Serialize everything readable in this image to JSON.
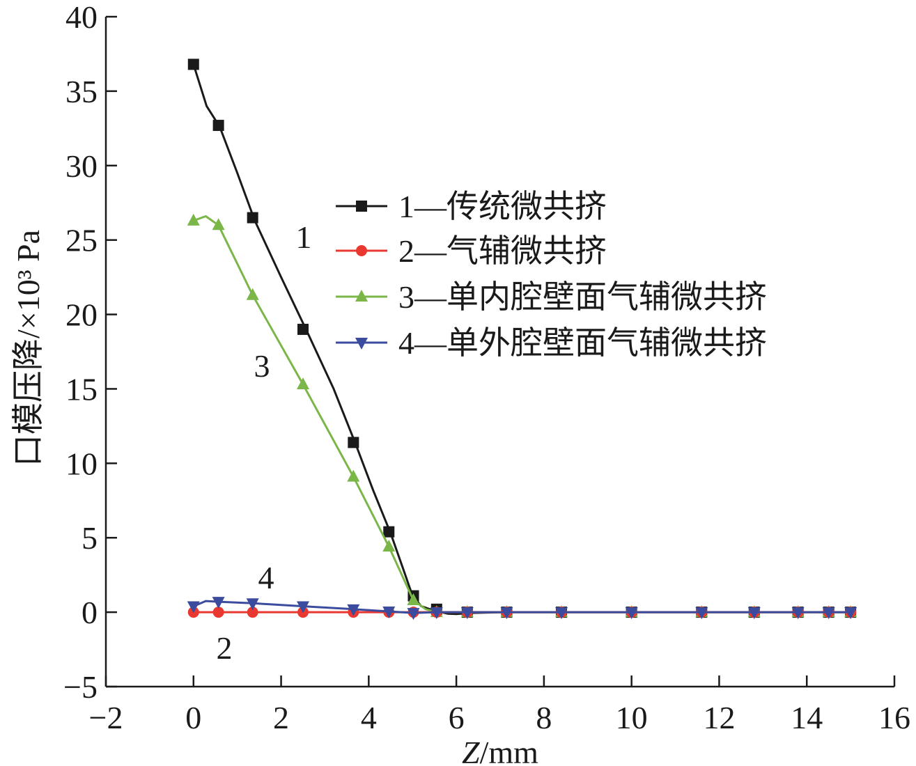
{
  "chart_data": {
    "type": "line",
    "xlabel": "Z/mm",
    "ylabel": "口模压降/×10³ Pa",
    "xlim": [
      -2,
      16
    ],
    "ylim": [
      -5,
      40
    ],
    "x_ticks": [
      "−2",
      "0",
      "2",
      "4",
      "6",
      "8",
      "10",
      "12",
      "14",
      "16"
    ],
    "y_ticks": [
      "−5",
      "0",
      "5",
      "10",
      "15",
      "20",
      "25",
      "30",
      "35",
      "40"
    ],
    "grid": false,
    "legend_position": "right",
    "series": [
      {
        "name": "1—传统微共挤",
        "curve_label": "1",
        "color": "#1a1a1a",
        "marker": "square",
        "line": [
          [
            0,
            36.8
          ],
          [
            0.3,
            34
          ],
          [
            0.6,
            32.6
          ],
          [
            1.0,
            29.5
          ],
          [
            1.4,
            26.3
          ],
          [
            2.0,
            22.5
          ],
          [
            2.6,
            18.8
          ],
          [
            3.2,
            15
          ],
          [
            3.7,
            11.3
          ],
          [
            4.1,
            8.2
          ],
          [
            4.5,
            5.3
          ],
          [
            4.8,
            2.8
          ],
          [
            5.0,
            1.1
          ],
          [
            5.2,
            0.4
          ],
          [
            5.5,
            0.1
          ],
          [
            5.8,
            -0.1
          ],
          [
            6.0,
            -0.12
          ],
          [
            6.3,
            -0.05
          ],
          [
            7.1,
            0
          ],
          [
            15,
            0
          ]
        ],
        "markers": [
          [
            0,
            36.8
          ],
          [
            0.57,
            32.7
          ],
          [
            1.35,
            26.5
          ],
          [
            2.5,
            19
          ],
          [
            3.65,
            11.4
          ],
          [
            4.46,
            5.4
          ],
          [
            5.02,
            1.1
          ],
          [
            5.55,
            0.2
          ],
          [
            6.25,
            0
          ],
          [
            7.15,
            0
          ],
          [
            8.4,
            0
          ],
          [
            10,
            0
          ],
          [
            11.6,
            0
          ],
          [
            12.8,
            0
          ],
          [
            13.8,
            0
          ],
          [
            14.5,
            0
          ],
          [
            15,
            0
          ]
        ]
      },
      {
        "name": "2—气辅微共挤",
        "curve_label": "2",
        "color": "#e8382f",
        "marker": "circle",
        "line": [
          [
            0,
            0
          ],
          [
            15,
            0
          ]
        ],
        "markers": [
          [
            0,
            0
          ],
          [
            0.57,
            0
          ],
          [
            1.35,
            0
          ],
          [
            2.5,
            0
          ],
          [
            3.65,
            0
          ],
          [
            4.46,
            0
          ],
          [
            5.02,
            0
          ],
          [
            5.55,
            0
          ],
          [
            6.25,
            0
          ],
          [
            7.15,
            0
          ],
          [
            8.4,
            0
          ],
          [
            10,
            0
          ],
          [
            11.6,
            0
          ],
          [
            12.8,
            0
          ],
          [
            13.8,
            0
          ],
          [
            14.5,
            0
          ],
          [
            15,
            0
          ]
        ]
      },
      {
        "name": "3—单内腔壁面气辅微共挤",
        "curve_label": "3",
        "color": "#7ab648",
        "marker": "triangle-up",
        "line": [
          [
            0,
            26.3
          ],
          [
            0.28,
            26.6
          ],
          [
            0.57,
            26
          ],
          [
            1.35,
            21.3
          ],
          [
            2.5,
            15.3
          ],
          [
            3.65,
            9.1
          ],
          [
            4.46,
            4.4
          ],
          [
            5.02,
            0.8
          ],
          [
            5.3,
            0.2
          ],
          [
            5.55,
            0
          ],
          [
            15,
            0
          ]
        ],
        "markers": [
          [
            0,
            26.3
          ],
          [
            0.57,
            26
          ],
          [
            1.35,
            21.3
          ],
          [
            2.5,
            15.3
          ],
          [
            3.65,
            9.1
          ],
          [
            4.46,
            4.4
          ],
          [
            5.02,
            0.8
          ],
          [
            5.55,
            0
          ],
          [
            6.25,
            0
          ],
          [
            7.15,
            0
          ],
          [
            8.4,
            0
          ],
          [
            10,
            0
          ],
          [
            11.6,
            0
          ],
          [
            12.8,
            0
          ],
          [
            13.8,
            0
          ],
          [
            14.5,
            0
          ],
          [
            15,
            0
          ]
        ]
      },
      {
        "name": "4—单外腔壁面气辅微共挤",
        "curve_label": "4",
        "color": "#3b4c9e",
        "marker": "triangle-down",
        "line": [
          [
            0,
            0.4
          ],
          [
            0.28,
            0.75
          ],
          [
            0.57,
            0.7
          ],
          [
            1.35,
            0.6
          ],
          [
            2.5,
            0.4
          ],
          [
            3.65,
            0.2
          ],
          [
            4.46,
            0.05
          ],
          [
            5.02,
            -0.05
          ],
          [
            5.55,
            0
          ],
          [
            15,
            0
          ]
        ],
        "markers": [
          [
            0,
            0.4
          ],
          [
            0.57,
            0.7
          ],
          [
            1.35,
            0.6
          ],
          [
            2.5,
            0.4
          ],
          [
            3.65,
            0.2
          ],
          [
            4.46,
            0.05
          ],
          [
            5.02,
            -0.05
          ],
          [
            5.55,
            0
          ],
          [
            6.25,
            0
          ],
          [
            7.15,
            0
          ],
          [
            8.4,
            0
          ],
          [
            10,
            0
          ],
          [
            11.6,
            0
          ],
          [
            12.8,
            0
          ],
          [
            13.8,
            0
          ],
          [
            14.5,
            0
          ],
          [
            15,
            0
          ]
        ]
      }
    ]
  }
}
